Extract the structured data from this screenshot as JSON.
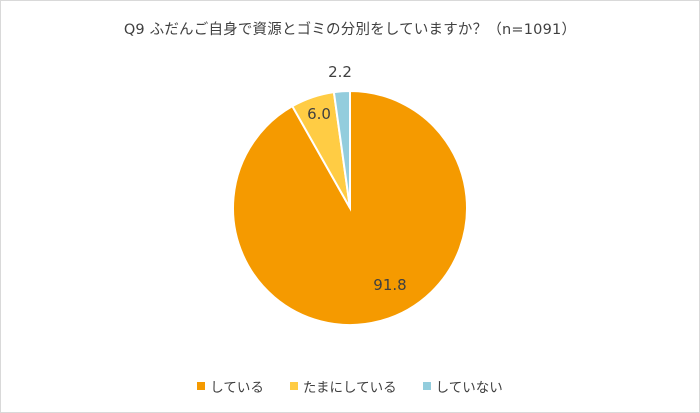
{
  "chart_data": {
    "type": "pie",
    "title": "Q9 ふだんご自身で資源とゴミの分別をしていますか？（n=1091）",
    "slices": [
      {
        "label": "している",
        "value": 91.8,
        "value_label": "91.8",
        "color": "#f59a00"
      },
      {
        "label": "たまにしている",
        "value": 6.0,
        "value_label": "6.0",
        "color": "#ffcc44"
      },
      {
        "label": "していない",
        "value": 2.2,
        "value_label": "2.2",
        "color": "#93cddd"
      }
    ],
    "start": "12 o'clock",
    "direction": "clockwise",
    "legend_position": "bottom"
  }
}
